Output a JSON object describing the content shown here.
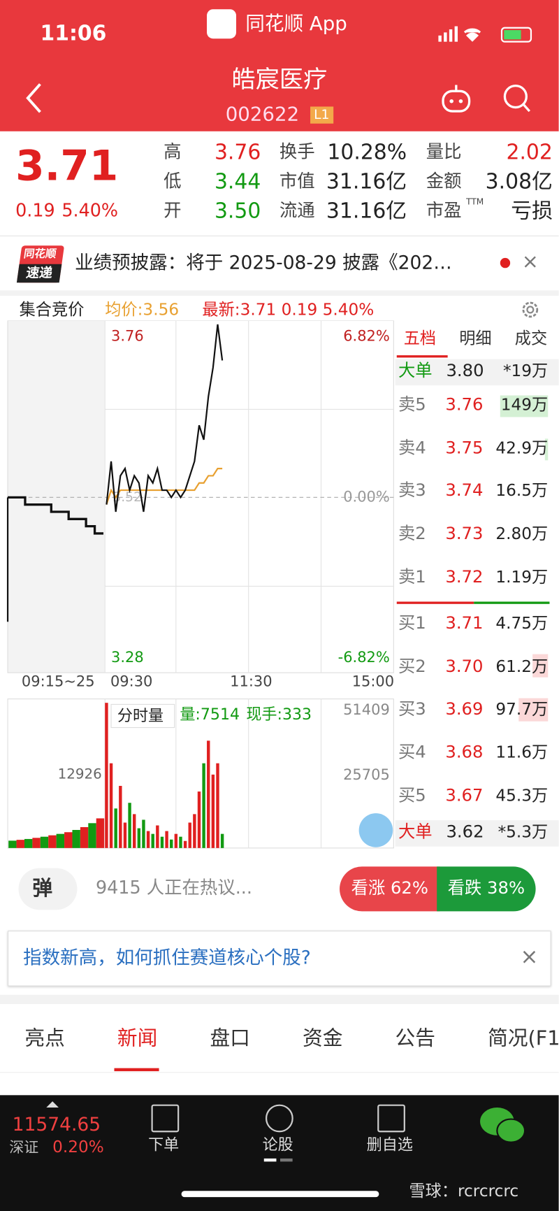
{
  "status_bar": {
    "time": "11:06",
    "app": "同花顺 App"
  },
  "header": {
    "name": "皓宸医疗",
    "code": "002622",
    "level": "L1"
  },
  "quote": {
    "price": "3.71",
    "change": "0.19",
    "change_pct": "5.40%",
    "stats": [
      {
        "label": "高",
        "value": "3.76"
      },
      {
        "label": "低",
        "value": "3.44"
      },
      {
        "label": "开",
        "value": "3.50"
      },
      {
        "label": "换手",
        "value": "10.28%"
      },
      {
        "label": "市值",
        "value": "31.16亿"
      },
      {
        "label": "流通",
        "value": "31.16亿"
      },
      {
        "label": "量比",
        "value": "2.02"
      },
      {
        "label": "金额",
        "value": "3.08亿"
      },
      {
        "label": "市盈",
        "sup": "TTM",
        "value": "亏损"
      }
    ]
  },
  "banner": {
    "badge_top": "同花顺",
    "badge_bottom": "速递",
    "text": "业绩预披露：将于 2025-08-29 披露《202…"
  },
  "chart_header": {
    "auction": "集合竞价",
    "avg": "均价:3.56",
    "latest": "最新:3.71 0.19 5.40%"
  },
  "intraday": {
    "type": "line",
    "ylim": [
      3.28,
      3.76
    ],
    "yticks": [
      3.76,
      3.28
    ],
    "prev_close": 3.52,
    "pct_labels": [
      "6.82%",
      "0.00%",
      "-6.82%"
    ],
    "times": [
      "09:15~25",
      "09:30",
      "11:30",
      "15:00"
    ],
    "auction_prices": [
      3.52,
      3.52,
      3.51,
      3.51,
      3.51,
      3.5,
      3.5,
      3.49,
      3.49,
      3.48,
      3.47,
      3.47
    ],
    "price": {
      "color": "#111111",
      "values": [
        3.51,
        3.57,
        3.5,
        3.55,
        3.56,
        3.53,
        3.55,
        3.54,
        3.5,
        3.55,
        3.54,
        3.56,
        3.53,
        3.53,
        3.52,
        3.53,
        3.52,
        3.53,
        3.55,
        3.57,
        3.62,
        3.6,
        3.66,
        3.7,
        3.76,
        3.71
      ]
    },
    "avg_price": {
      "color": "#e8a030",
      "values": [
        3.51,
        3.53,
        3.52,
        3.53,
        3.53,
        3.53,
        3.53,
        3.53,
        3.53,
        3.53,
        3.53,
        3.53,
        3.53,
        3.53,
        3.53,
        3.53,
        3.53,
        3.53,
        3.53,
        3.53,
        3.54,
        3.54,
        3.55,
        3.55,
        3.56,
        3.56
      ]
    }
  },
  "volume": {
    "title": "分时量",
    "vol": "量:7514",
    "hand": "现手:333",
    "ylim": [
      0,
      51409
    ],
    "yticks": [
      51409,
      25705
    ],
    "auction_label": 12926,
    "auction_values": [
      2600,
      2900,
      3200,
      3600,
      4000,
      4500,
      5000,
      5600,
      6400,
      7400,
      8800,
      10500
    ],
    "values": [
      51409,
      30000,
      14000,
      22000,
      9000,
      16000,
      12000,
      7000,
      10000,
      6000,
      5000,
      8000,
      4000,
      6000,
      3000,
      5000,
      4000,
      2500,
      9000,
      12000,
      20000,
      30000,
      38000,
      26000,
      30000,
      5000
    ]
  },
  "order_book": {
    "tabs": [
      "五档",
      "明细",
      "成交"
    ],
    "big_sell": {
      "label": "大单",
      "price": "3.80",
      "vol": "*19万"
    },
    "sells": [
      {
        "label": "卖5",
        "price": "3.76",
        "vol": "149万"
      },
      {
        "label": "卖4",
        "price": "3.75",
        "vol": "42.9万"
      },
      {
        "label": "卖3",
        "price": "3.74",
        "vol": "16.5万"
      },
      {
        "label": "卖2",
        "price": "3.73",
        "vol": "2.80万"
      },
      {
        "label": "卖1",
        "price": "3.72",
        "vol": "1.19万"
      }
    ],
    "buys": [
      {
        "label": "买1",
        "price": "3.71",
        "vol": "4.75万"
      },
      {
        "label": "买2",
        "price": "3.70",
        "vol": "61.2万"
      },
      {
        "label": "买3",
        "price": "3.69",
        "vol": "97.7万"
      },
      {
        "label": "买4",
        "price": "3.68",
        "vol": "11.6万"
      },
      {
        "label": "买5",
        "price": "3.67",
        "vol": "45.3万"
      }
    ],
    "big_buy": {
      "label": "大单",
      "price": "3.62",
      "vol": "*5.3万"
    }
  },
  "discussion": {
    "icon": "弹",
    "text": "9415 人正在热议...",
    "up": "看涨 62%",
    "down": "看跌 38%"
  },
  "ad": {
    "text": "指数新高，如何抓住赛道核心个股?"
  },
  "tabs": [
    "亮点",
    "新闻",
    "盘口",
    "资金",
    "公告",
    "简况(F1"
  ],
  "bottom": {
    "index": "11574.65",
    "market": "深证",
    "index_change": "0.20%",
    "nav": [
      "下单",
      "论股",
      "删自选"
    ]
  },
  "watermark": "雪球：rcrcrcrc"
}
